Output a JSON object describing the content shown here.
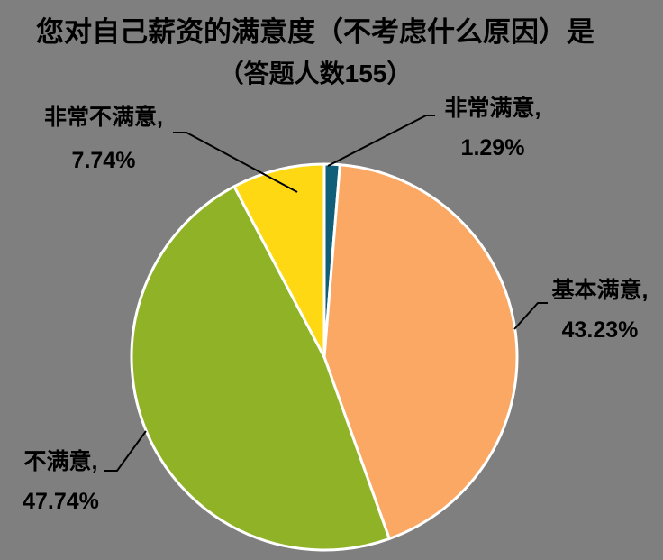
{
  "background_color": "#7F7F7F",
  "header": {
    "title": "您对自己薪资的满意度（不考虑什么原因）是",
    "subtitle": "（答题人数155）"
  },
  "chart_data": {
    "type": "pie",
    "title": "您对自己薪资的满意度（不考虑什么原因）是",
    "subtitle": "（答题人数155）",
    "respondent_count": 155,
    "start_angle_deg": 0,
    "direction": "clockwise",
    "legend_position": "none",
    "label_style": "outside callouts with black leader lines",
    "slice_border_color": "#FFFFFF",
    "leader_line_color": "#000000",
    "text_color": "#000000",
    "slices": [
      {
        "label": "非常满意",
        "value_pct": 1.29,
        "color": "#115E78",
        "callout_line1": "非常满意,",
        "callout_line2": "1.29%"
      },
      {
        "label": "基本满意",
        "value_pct": 43.23,
        "color": "#FAA863",
        "callout_line1": "基本满意,",
        "callout_line2": "43.23%"
      },
      {
        "label": "不满意",
        "value_pct": 47.74,
        "color": "#8FB226",
        "callout_line1": "不满意,",
        "callout_line2": "47.74%"
      },
      {
        "label": "非常不满意",
        "value_pct": 7.74,
        "color": "#FFD814",
        "callout_line1": "非常不满意,",
        "callout_line2": "7.74%"
      }
    ]
  }
}
